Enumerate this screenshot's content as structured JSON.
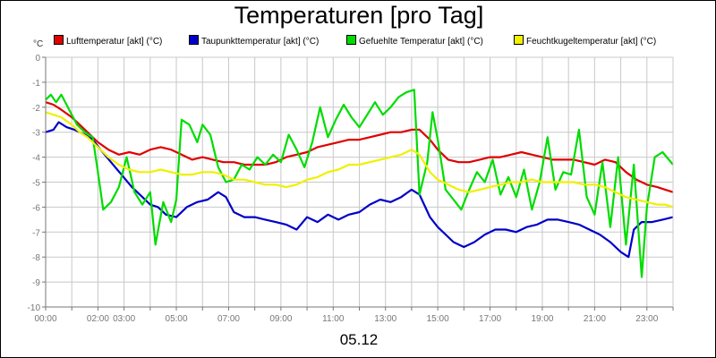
{
  "chart_data": {
    "type": "line",
    "title": "Temperaturen [pro Tag]",
    "unit": "°C",
    "date_label": "05.12",
    "xlabel": "",
    "ylabel": "°C",
    "xlim": [
      0,
      24
    ],
    "ylim": [
      -10,
      0
    ],
    "grid": true,
    "legend_position": "top",
    "y_ticks": [
      0,
      -1,
      -2,
      -3,
      -4,
      -5,
      -6,
      -7,
      -8,
      -9,
      -10
    ],
    "x_ticks": [
      {
        "h": 0,
        "label": "00:00"
      },
      {
        "h": 2,
        "label": "02:00"
      },
      {
        "h": 3,
        "label": "03:00"
      },
      {
        "h": 5,
        "label": "05:00"
      },
      {
        "h": 7,
        "label": "07:00"
      },
      {
        "h": 9,
        "label": "09:00"
      },
      {
        "h": 11,
        "label": "11:00"
      },
      {
        "h": 13,
        "label": "13:00"
      },
      {
        "h": 15,
        "label": "15:00"
      },
      {
        "h": 17,
        "label": "17:00"
      },
      {
        "h": 19,
        "label": "19:00"
      },
      {
        "h": 21,
        "label": "21:00"
      },
      {
        "h": 23,
        "label": "23:00"
      }
    ],
    "series": [
      {
        "name": "Lufttemperatur [akt] (°C)",
        "color": "#e00000",
        "points": [
          [
            0,
            -1.8
          ],
          [
            0.3,
            -1.9
          ],
          [
            0.6,
            -2.1
          ],
          [
            1.0,
            -2.4
          ],
          [
            1.3,
            -2.7
          ],
          [
            1.6,
            -3.0
          ],
          [
            2.0,
            -3.4
          ],
          [
            2.4,
            -3.7
          ],
          [
            2.8,
            -3.9
          ],
          [
            3.2,
            -3.8
          ],
          [
            3.6,
            -3.9
          ],
          [
            4.0,
            -3.7
          ],
          [
            4.4,
            -3.6
          ],
          [
            4.8,
            -3.7
          ],
          [
            5.2,
            -3.9
          ],
          [
            5.6,
            -4.1
          ],
          [
            6.0,
            -4.0
          ],
          [
            6.4,
            -4.1
          ],
          [
            6.8,
            -4.2
          ],
          [
            7.2,
            -4.2
          ],
          [
            7.6,
            -4.3
          ],
          [
            8.0,
            -4.3
          ],
          [
            8.4,
            -4.3
          ],
          [
            8.8,
            -4.2
          ],
          [
            9.2,
            -4.0
          ],
          [
            9.6,
            -3.9
          ],
          [
            10.0,
            -3.8
          ],
          [
            10.4,
            -3.6
          ],
          [
            10.8,
            -3.5
          ],
          [
            11.2,
            -3.4
          ],
          [
            11.6,
            -3.3
          ],
          [
            12.0,
            -3.3
          ],
          [
            12.4,
            -3.2
          ],
          [
            12.8,
            -3.1
          ],
          [
            13.2,
            -3.0
          ],
          [
            13.6,
            -3.0
          ],
          [
            14.0,
            -2.9
          ],
          [
            14.3,
            -2.9
          ],
          [
            14.7,
            -3.3
          ],
          [
            15.0,
            -3.7
          ],
          [
            15.4,
            -4.1
          ],
          [
            15.8,
            -4.2
          ],
          [
            16.2,
            -4.2
          ],
          [
            16.6,
            -4.1
          ],
          [
            17.0,
            -4.0
          ],
          [
            17.4,
            -4.0
          ],
          [
            17.8,
            -3.9
          ],
          [
            18.2,
            -3.8
          ],
          [
            18.6,
            -3.9
          ],
          [
            19.0,
            -4.0
          ],
          [
            19.4,
            -4.1
          ],
          [
            19.8,
            -4.1
          ],
          [
            20.2,
            -4.1
          ],
          [
            20.6,
            -4.2
          ],
          [
            21.0,
            -4.3
          ],
          [
            21.4,
            -4.1
          ],
          [
            21.8,
            -4.2
          ],
          [
            22.2,
            -4.6
          ],
          [
            22.6,
            -4.9
          ],
          [
            23.0,
            -5.1
          ],
          [
            23.4,
            -5.2
          ],
          [
            23.7,
            -5.3
          ],
          [
            24.0,
            -5.4
          ]
        ]
      },
      {
        "name": "Taupunkttemperatur [akt] (°C)",
        "color": "#0000c8",
        "points": [
          [
            0,
            -3.0
          ],
          [
            0.3,
            -2.9
          ],
          [
            0.5,
            -2.6
          ],
          [
            0.8,
            -2.8
          ],
          [
            1.1,
            -2.9
          ],
          [
            1.5,
            -3.1
          ],
          [
            1.8,
            -3.3
          ],
          [
            2.1,
            -3.7
          ],
          [
            2.5,
            -4.2
          ],
          [
            2.9,
            -4.7
          ],
          [
            3.3,
            -5.2
          ],
          [
            3.7,
            -5.6
          ],
          [
            4.0,
            -5.9
          ],
          [
            4.3,
            -6.0
          ],
          [
            4.6,
            -6.3
          ],
          [
            5.0,
            -6.4
          ],
          [
            5.4,
            -6.0
          ],
          [
            5.8,
            -5.8
          ],
          [
            6.2,
            -5.7
          ],
          [
            6.6,
            -5.4
          ],
          [
            6.9,
            -5.6
          ],
          [
            7.2,
            -6.2
          ],
          [
            7.6,
            -6.4
          ],
          [
            8.0,
            -6.4
          ],
          [
            8.4,
            -6.5
          ],
          [
            8.8,
            -6.6
          ],
          [
            9.2,
            -6.7
          ],
          [
            9.6,
            -6.9
          ],
          [
            10.0,
            -6.4
          ],
          [
            10.4,
            -6.6
          ],
          [
            10.8,
            -6.3
          ],
          [
            11.2,
            -6.5
          ],
          [
            11.6,
            -6.3
          ],
          [
            12.0,
            -6.2
          ],
          [
            12.4,
            -5.9
          ],
          [
            12.8,
            -5.7
          ],
          [
            13.2,
            -5.8
          ],
          [
            13.6,
            -5.6
          ],
          [
            14.0,
            -5.3
          ],
          [
            14.3,
            -5.5
          ],
          [
            14.7,
            -6.4
          ],
          [
            15.0,
            -6.8
          ],
          [
            15.3,
            -7.1
          ],
          [
            15.6,
            -7.4
          ],
          [
            16.0,
            -7.6
          ],
          [
            16.4,
            -7.4
          ],
          [
            16.8,
            -7.1
          ],
          [
            17.2,
            -6.9
          ],
          [
            17.6,
            -6.9
          ],
          [
            18.0,
            -7.0
          ],
          [
            18.4,
            -6.8
          ],
          [
            18.8,
            -6.7
          ],
          [
            19.2,
            -6.5
          ],
          [
            19.6,
            -6.5
          ],
          [
            20.0,
            -6.6
          ],
          [
            20.4,
            -6.7
          ],
          [
            20.8,
            -6.9
          ],
          [
            21.2,
            -7.1
          ],
          [
            21.6,
            -7.4
          ],
          [
            22.0,
            -7.8
          ],
          [
            22.3,
            -8.0
          ],
          [
            22.5,
            -6.9
          ],
          [
            22.8,
            -6.6
          ],
          [
            23.2,
            -6.6
          ],
          [
            23.6,
            -6.5
          ],
          [
            24.0,
            -6.4
          ]
        ]
      },
      {
        "name": "Gefuehlte Temperatur [akt] (°C)",
        "color": "#00dc00",
        "points": [
          [
            0,
            -1.7
          ],
          [
            0.2,
            -1.5
          ],
          [
            0.4,
            -1.8
          ],
          [
            0.6,
            -1.5
          ],
          [
            0.9,
            -2.1
          ],
          [
            1.2,
            -2.7
          ],
          [
            1.5,
            -3.0
          ],
          [
            1.8,
            -3.2
          ],
          [
            2.0,
            -4.6
          ],
          [
            2.2,
            -6.1
          ],
          [
            2.5,
            -5.8
          ],
          [
            2.8,
            -5.2
          ],
          [
            3.1,
            -4.0
          ],
          [
            3.4,
            -5.4
          ],
          [
            3.7,
            -5.9
          ],
          [
            4.0,
            -5.4
          ],
          [
            4.2,
            -7.5
          ],
          [
            4.5,
            -5.8
          ],
          [
            4.8,
            -6.6
          ],
          [
            5.0,
            -5.7
          ],
          [
            5.2,
            -2.5
          ],
          [
            5.5,
            -2.7
          ],
          [
            5.8,
            -3.4
          ],
          [
            6.0,
            -2.7
          ],
          [
            6.3,
            -3.1
          ],
          [
            6.6,
            -4.4
          ],
          [
            6.9,
            -5.0
          ],
          [
            7.2,
            -4.9
          ],
          [
            7.5,
            -4.3
          ],
          [
            7.8,
            -4.5
          ],
          [
            8.1,
            -4.0
          ],
          [
            8.4,
            -4.3
          ],
          [
            8.7,
            -3.9
          ],
          [
            9.0,
            -4.2
          ],
          [
            9.3,
            -3.1
          ],
          [
            9.6,
            -3.7
          ],
          [
            9.9,
            -4.4
          ],
          [
            10.2,
            -3.4
          ],
          [
            10.5,
            -2.0
          ],
          [
            10.8,
            -3.2
          ],
          [
            11.1,
            -2.5
          ],
          [
            11.4,
            -1.9
          ],
          [
            11.7,
            -2.4
          ],
          [
            12.0,
            -2.8
          ],
          [
            12.3,
            -2.3
          ],
          [
            12.6,
            -1.8
          ],
          [
            12.9,
            -2.3
          ],
          [
            13.2,
            -2.0
          ],
          [
            13.5,
            -1.6
          ],
          [
            13.8,
            -1.4
          ],
          [
            14.1,
            -1.3
          ],
          [
            14.3,
            -5.5
          ],
          [
            14.6,
            -4.2
          ],
          [
            14.8,
            -2.2
          ],
          [
            15.0,
            -3.3
          ],
          [
            15.3,
            -5.3
          ],
          [
            15.6,
            -5.7
          ],
          [
            15.9,
            -6.1
          ],
          [
            16.2,
            -5.3
          ],
          [
            16.5,
            -4.6
          ],
          [
            16.8,
            -5.0
          ],
          [
            17.1,
            -4.1
          ],
          [
            17.4,
            -5.5
          ],
          [
            17.7,
            -4.8
          ],
          [
            18.0,
            -5.6
          ],
          [
            18.3,
            -4.5
          ],
          [
            18.6,
            -6.1
          ],
          [
            18.9,
            -5.0
          ],
          [
            19.2,
            -3.2
          ],
          [
            19.5,
            -5.3
          ],
          [
            19.8,
            -4.6
          ],
          [
            20.1,
            -4.7
          ],
          [
            20.4,
            -2.9
          ],
          [
            20.7,
            -5.6
          ],
          [
            21.0,
            -6.3
          ],
          [
            21.3,
            -4.2
          ],
          [
            21.6,
            -6.8
          ],
          [
            21.9,
            -4.0
          ],
          [
            22.2,
            -7.5
          ],
          [
            22.5,
            -4.3
          ],
          [
            22.8,
            -8.8
          ],
          [
            23.0,
            -6.0
          ],
          [
            23.3,
            -4.0
          ],
          [
            23.6,
            -3.8
          ],
          [
            24.0,
            -4.3
          ]
        ]
      },
      {
        "name": "Feuchtkugeltemperatur [akt] (°C)",
        "color": "#f0f000",
        "points": [
          [
            0,
            -2.2
          ],
          [
            0.3,
            -2.3
          ],
          [
            0.6,
            -2.4
          ],
          [
            1.0,
            -2.7
          ],
          [
            1.3,
            -3.0
          ],
          [
            1.6,
            -3.2
          ],
          [
            2.0,
            -3.6
          ],
          [
            2.4,
            -4.0
          ],
          [
            2.8,
            -4.3
          ],
          [
            3.2,
            -4.5
          ],
          [
            3.6,
            -4.6
          ],
          [
            4.0,
            -4.6
          ],
          [
            4.4,
            -4.5
          ],
          [
            4.8,
            -4.6
          ],
          [
            5.2,
            -4.7
          ],
          [
            5.6,
            -4.7
          ],
          [
            6.0,
            -4.6
          ],
          [
            6.4,
            -4.6
          ],
          [
            6.8,
            -4.7
          ],
          [
            7.2,
            -4.9
          ],
          [
            7.6,
            -4.9
          ],
          [
            8.0,
            -5.0
          ],
          [
            8.4,
            -5.1
          ],
          [
            8.8,
            -5.1
          ],
          [
            9.2,
            -5.2
          ],
          [
            9.6,
            -5.1
          ],
          [
            10.0,
            -4.9
          ],
          [
            10.4,
            -4.8
          ],
          [
            10.8,
            -4.6
          ],
          [
            11.2,
            -4.5
          ],
          [
            11.6,
            -4.3
          ],
          [
            12.0,
            -4.3
          ],
          [
            12.4,
            -4.2
          ],
          [
            12.8,
            -4.1
          ],
          [
            13.2,
            -4.0
          ],
          [
            13.6,
            -3.9
          ],
          [
            14.0,
            -3.7
          ],
          [
            14.3,
            -3.9
          ],
          [
            14.7,
            -4.6
          ],
          [
            15.0,
            -4.9
          ],
          [
            15.4,
            -5.1
          ],
          [
            15.8,
            -5.3
          ],
          [
            16.2,
            -5.4
          ],
          [
            16.6,
            -5.3
          ],
          [
            17.0,
            -5.2
          ],
          [
            17.4,
            -5.1
          ],
          [
            17.8,
            -5.0
          ],
          [
            18.2,
            -5.0
          ],
          [
            18.6,
            -4.9
          ],
          [
            19.0,
            -5.0
          ],
          [
            19.4,
            -5.0
          ],
          [
            19.8,
            -5.0
          ],
          [
            20.2,
            -5.0
          ],
          [
            20.6,
            -5.1
          ],
          [
            21.0,
            -5.1
          ],
          [
            21.4,
            -5.2
          ],
          [
            21.8,
            -5.4
          ],
          [
            22.2,
            -5.6
          ],
          [
            22.6,
            -5.7
          ],
          [
            23.0,
            -5.8
          ],
          [
            23.4,
            -5.9
          ],
          [
            23.7,
            -5.9
          ],
          [
            24.0,
            -6.0
          ]
        ]
      }
    ]
  }
}
